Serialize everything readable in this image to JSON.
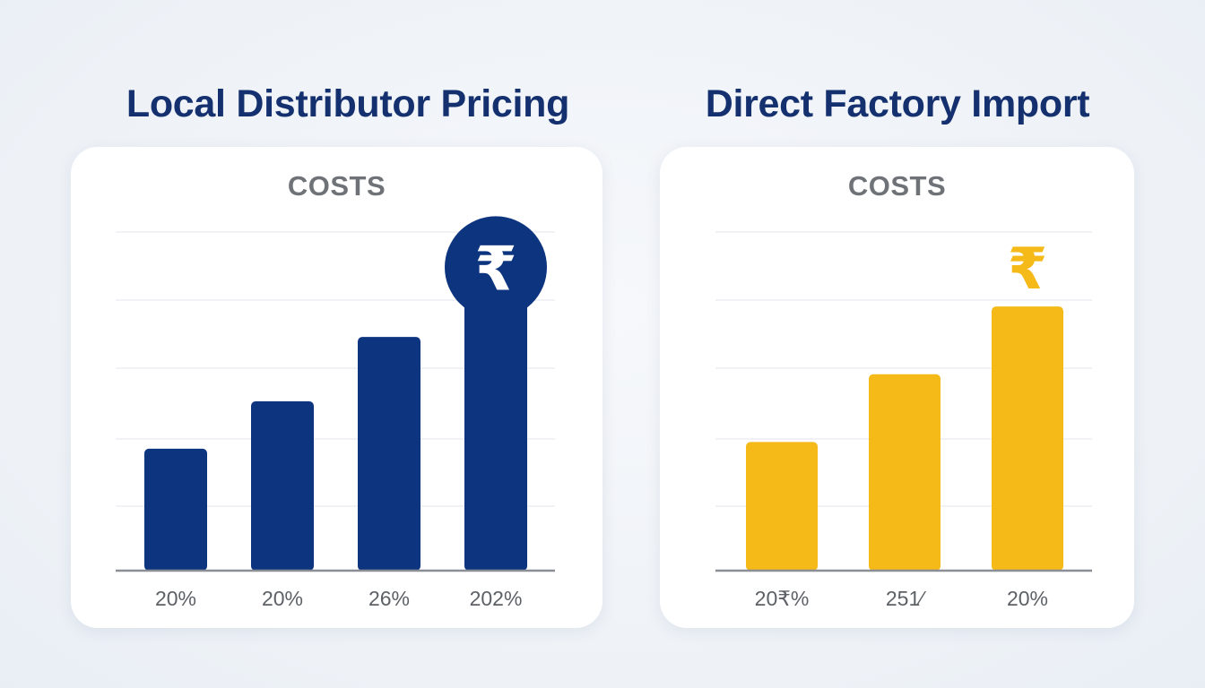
{
  "chart_data": [
    {
      "type": "bar",
      "title": "Local Distributor Pricing",
      "subtitle": "COSTS",
      "categories": [
        "20%",
        "20%",
        "26%",
        "202%"
      ],
      "values": [
        18,
        25,
        34.5,
        44
      ],
      "ylim": [
        0,
        50
      ],
      "grid": true,
      "color": "#0d357f",
      "annotation": {
        "icon": "rupee-icon",
        "text": "₹",
        "style": "filled-circle",
        "on_category": 3,
        "color": "#0d357f"
      }
    },
    {
      "type": "bar",
      "title": "Direct Factory Import",
      "subtitle": "COSTS",
      "categories": [
        "20₹%",
        "251⁄",
        "20%"
      ],
      "values": [
        19,
        29,
        39
      ],
      "ylim": [
        0,
        50
      ],
      "grid": true,
      "color": "#f5b918",
      "annotation": {
        "icon": "rupee-icon",
        "text": "₹",
        "style": "plain",
        "on_category": 2,
        "color": "#f5b918"
      }
    }
  ]
}
